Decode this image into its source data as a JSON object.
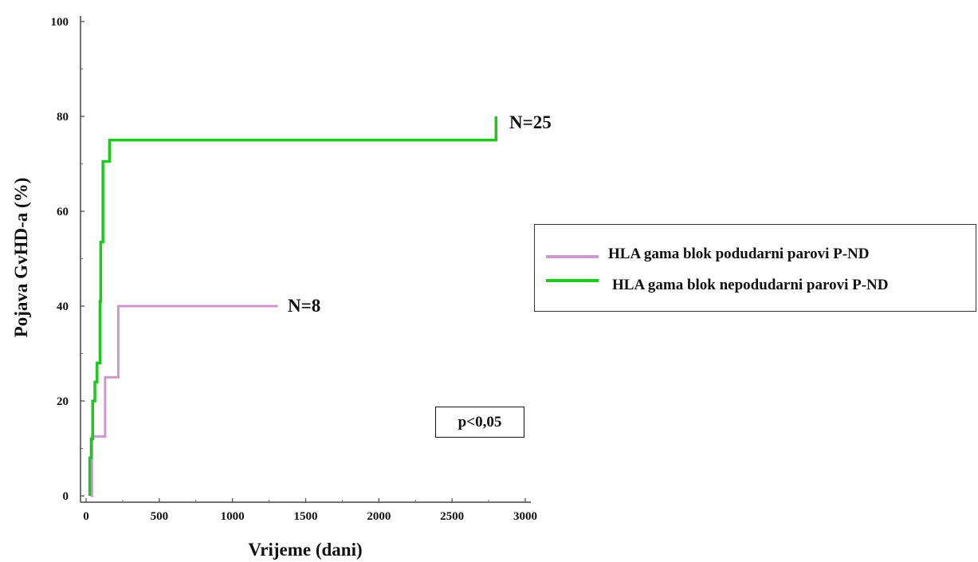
{
  "chart_data": {
    "type": "line",
    "step": true,
    "xlabel": "Vrijeme (dani)",
    "ylabel": "Pojava GvHD-a (%)",
    "xlim": [
      0,
      3000
    ],
    "ylim": [
      0,
      100
    ],
    "xticks": [
      0,
      500,
      1000,
      1500,
      2000,
      2500,
      3000
    ],
    "yticks": [
      0,
      20,
      40,
      60,
      80,
      100
    ],
    "grid": false,
    "legend_position": "right",
    "series": [
      {
        "name": "HLA gama blok podudarni parovi P-ND",
        "color": "#cc99cc",
        "end_label": "N=8",
        "x": [
          30,
          40,
          130,
          220,
          1310
        ],
        "y": [
          0,
          12.5,
          25,
          40,
          40
        ]
      },
      {
        "name": "HLA gama blok nepodudarni parovi P-ND",
        "color": "#1ec81e",
        "end_label": "N=25",
        "x": [
          25,
          35,
          45,
          60,
          75,
          95,
          100,
          115,
          160,
          2800
        ],
        "y": [
          8,
          12,
          20,
          24,
          28,
          41,
          53.5,
          70.5,
          75,
          80
        ]
      }
    ],
    "annotation": "p<0,05"
  }
}
